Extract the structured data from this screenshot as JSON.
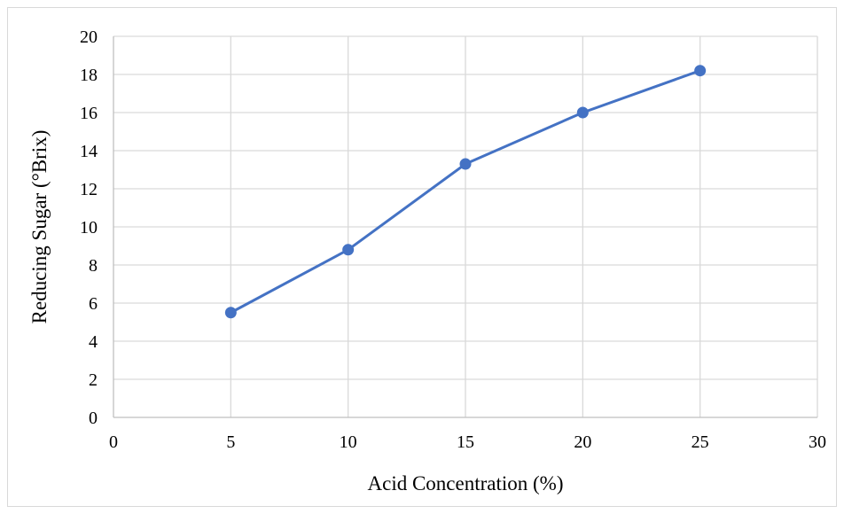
{
  "chart_data": {
    "type": "line",
    "title": "",
    "xlabel": "Acid Concentration (%)",
    "ylabel": "Reducing Sugar (°Brix)",
    "xlim": [
      0,
      30
    ],
    "ylim": [
      0,
      20
    ],
    "xticks": [
      0,
      5,
      10,
      15,
      20,
      25,
      30
    ],
    "yticks": [
      0,
      2,
      4,
      6,
      8,
      10,
      12,
      14,
      16,
      18,
      20
    ],
    "grid": true,
    "legend": "none",
    "series": [
      {
        "x": [
          5,
          10,
          15,
          20,
          25
        ],
        "y": [
          5.5,
          8.8,
          13.3,
          16.0,
          18.2
        ],
        "color": "#4472c4",
        "marker": "circle"
      }
    ]
  }
}
